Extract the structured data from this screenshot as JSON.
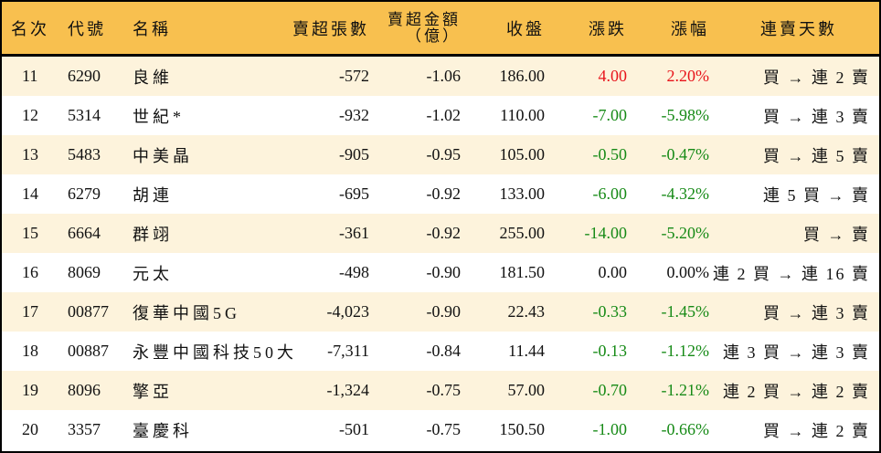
{
  "table": {
    "headers": {
      "rank": "名次",
      "code": "代號",
      "name": "名稱",
      "oversold_lots": "賣超張數",
      "oversold_amount_line1": "賣超金額",
      "oversold_amount_line2": "（億）",
      "close": "收盤",
      "change": "漲跌",
      "change_pct": "漲幅",
      "streak": "連賣天數"
    },
    "colors": {
      "header_bg": "#f8c04f",
      "alt_row_bg": "#fdf3dc",
      "up": "#e8141b",
      "down": "#168a16"
    },
    "rows": [
      {
        "rank": "11",
        "code": "6290",
        "name": "良維",
        "oversold_lots": "-572",
        "oversold_amount": "-1.06",
        "close": "186.00",
        "change": "4.00",
        "change_pct": "2.20%",
        "trend": "up",
        "streak": "買 → 連 2 賣"
      },
      {
        "rank": "12",
        "code": "5314",
        "name": "世紀*",
        "oversold_lots": "-932",
        "oversold_amount": "-1.02",
        "close": "110.00",
        "change": "-7.00",
        "change_pct": "-5.98%",
        "trend": "down",
        "streak": "買 → 連 3 賣"
      },
      {
        "rank": "13",
        "code": "5483",
        "name": "中美晶",
        "oversold_lots": "-905",
        "oversold_amount": "-0.95",
        "close": "105.00",
        "change": "-0.50",
        "change_pct": "-0.47%",
        "trend": "down",
        "streak": "買 → 連 5 賣"
      },
      {
        "rank": "14",
        "code": "6279",
        "name": "胡連",
        "oversold_lots": "-695",
        "oversold_amount": "-0.92",
        "close": "133.00",
        "change": "-6.00",
        "change_pct": "-4.32%",
        "trend": "down",
        "streak": "連 5 買 → 賣"
      },
      {
        "rank": "15",
        "code": "6664",
        "name": "群翊",
        "oversold_lots": "-361",
        "oversold_amount": "-0.92",
        "close": "255.00",
        "change": "-14.00",
        "change_pct": "-5.20%",
        "trend": "down",
        "streak": "買 → 賣"
      },
      {
        "rank": "16",
        "code": "8069",
        "name": "元太",
        "oversold_lots": "-498",
        "oversold_amount": "-0.90",
        "close": "181.50",
        "change": "0.00",
        "change_pct": "0.00%",
        "trend": "flat",
        "streak": "連 2 買 → 連 16 賣"
      },
      {
        "rank": "17",
        "code": "00877",
        "name": "復華中國5G",
        "oversold_lots": "-4,023",
        "oversold_amount": "-0.90",
        "close": "22.43",
        "change": "-0.33",
        "change_pct": "-1.45%",
        "trend": "down",
        "streak": "買 → 連 3 賣"
      },
      {
        "rank": "18",
        "code": "00887",
        "name": "永豐中國科技50大",
        "oversold_lots": "-7,311",
        "oversold_amount": "-0.84",
        "close": "11.44",
        "change": "-0.13",
        "change_pct": "-1.12%",
        "trend": "down",
        "streak": "連 3 買 → 連 3 賣"
      },
      {
        "rank": "19",
        "code": "8096",
        "name": "擎亞",
        "oversold_lots": "-1,324",
        "oversold_amount": "-0.75",
        "close": "57.00",
        "change": "-0.70",
        "change_pct": "-1.21%",
        "trend": "down",
        "streak": "連 2 買 → 連 2 賣"
      },
      {
        "rank": "20",
        "code": "3357",
        "name": "臺慶科",
        "oversold_lots": "-501",
        "oversold_amount": "-0.75",
        "close": "150.50",
        "change": "-1.00",
        "change_pct": "-0.66%",
        "trend": "down",
        "streak": "買 → 連 2 賣"
      }
    ]
  }
}
